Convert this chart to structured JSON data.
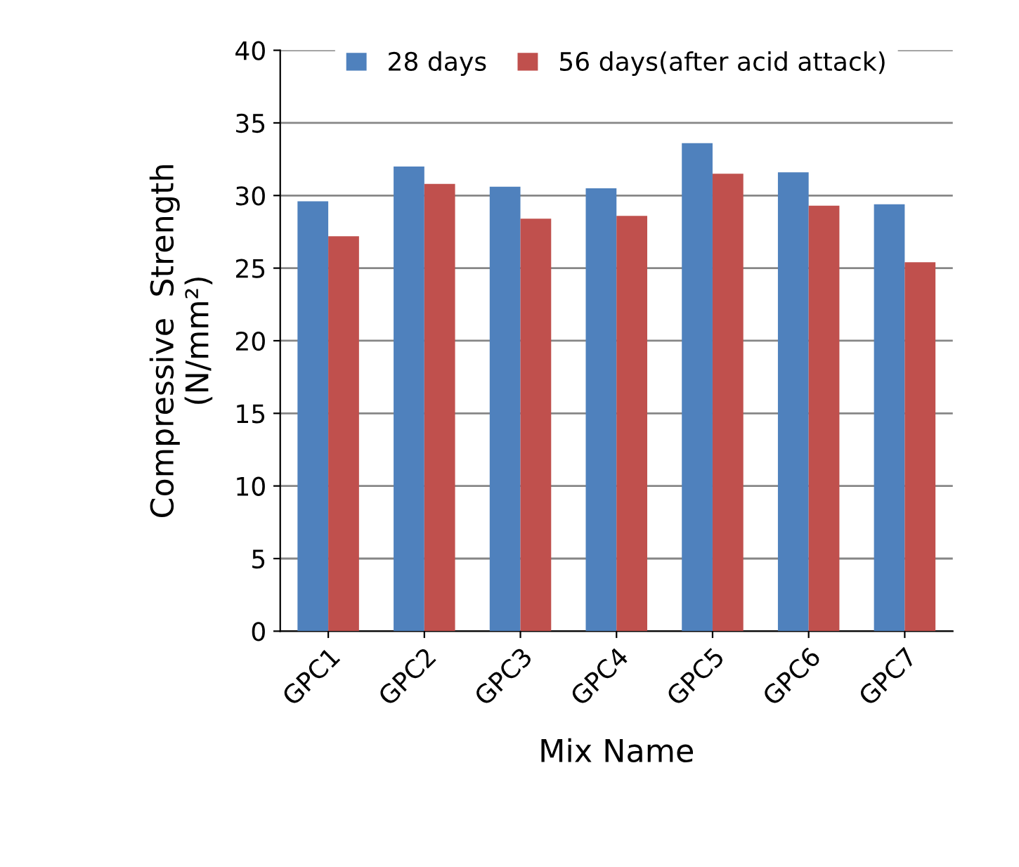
{
  "chart_data": {
    "type": "bar",
    "xlabel": "Mix Name",
    "ylabel": "Compressive  Strength\n(N/mm²)",
    "categories": [
      "GPC1",
      "GPC2",
      "GPC3",
      "GPC4",
      "GPC5",
      "GPC6",
      "GPC7"
    ],
    "series": [
      {
        "name": "28 days",
        "color": "#4f81bd",
        "values": [
          29.6,
          32.0,
          30.6,
          30.5,
          33.6,
          31.6,
          29.4
        ]
      },
      {
        "name": "56 days(after acid attack)",
        "color": "#c0504d",
        "values": [
          27.2,
          30.8,
          28.4,
          28.6,
          31.5,
          29.3,
          25.4
        ]
      }
    ],
    "ylim": [
      0,
      40
    ],
    "yticks": [
      0,
      5,
      10,
      15,
      20,
      25,
      30,
      35,
      40
    ],
    "grid": "y",
    "legend": "top"
  }
}
